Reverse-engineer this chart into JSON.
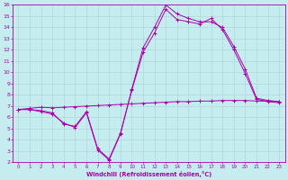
{
  "xlabel": "Windchill (Refroidissement éolien,°C)",
  "xlim": [
    -0.5,
    23.5
  ],
  "ylim": [
    2,
    16
  ],
  "xticks": [
    0,
    1,
    2,
    3,
    4,
    5,
    6,
    7,
    8,
    9,
    10,
    11,
    12,
    13,
    14,
    15,
    16,
    17,
    18,
    19,
    20,
    21,
    22,
    23
  ],
  "yticks": [
    2,
    3,
    4,
    5,
    6,
    7,
    8,
    9,
    10,
    11,
    12,
    13,
    14,
    15,
    16
  ],
  "bg_color": "#c5edf0",
  "line_color": "#aa00aa",
  "grid_color": "#b0d0d5",
  "line1_x": [
    0,
    1,
    2,
    3,
    4,
    5,
    6,
    7,
    8,
    9,
    10,
    11,
    12,
    13,
    14,
    15,
    16,
    17,
    18,
    19,
    20,
    21,
    22,
    23
  ],
  "line1_y": [
    6.7,
    6.8,
    6.9,
    6.85,
    6.9,
    6.95,
    7.0,
    7.05,
    7.1,
    7.15,
    7.2,
    7.25,
    7.3,
    7.35,
    7.4,
    7.4,
    7.45,
    7.45,
    7.5,
    7.5,
    7.5,
    7.45,
    7.45,
    7.4
  ],
  "line2_x": [
    0,
    1,
    2,
    3,
    4,
    5,
    6,
    7,
    8,
    9,
    10,
    11,
    12,
    13,
    14,
    15,
    16,
    17,
    18,
    19,
    20,
    21,
    22,
    23
  ],
  "line2_y": [
    6.7,
    6.7,
    6.5,
    6.3,
    5.5,
    5.1,
    6.4,
    3.1,
    2.2,
    4.5,
    8.5,
    12.2,
    14.0,
    16.0,
    15.2,
    14.8,
    14.5,
    14.5,
    14.0,
    12.3,
    10.3,
    7.7,
    7.5,
    7.4
  ],
  "line3_x": [
    0,
    1,
    2,
    3,
    4,
    5,
    6,
    7,
    8,
    9,
    10,
    11,
    12,
    13,
    14,
    15,
    16,
    17,
    18,
    19,
    20,
    21,
    22,
    23
  ],
  "line3_y": [
    6.7,
    6.7,
    6.6,
    6.4,
    5.4,
    5.2,
    6.5,
    3.2,
    2.3,
    4.6,
    8.4,
    11.8,
    13.5,
    15.6,
    14.7,
    14.5,
    14.3,
    14.8,
    13.8,
    12.0,
    9.9,
    7.6,
    7.4,
    7.3
  ]
}
